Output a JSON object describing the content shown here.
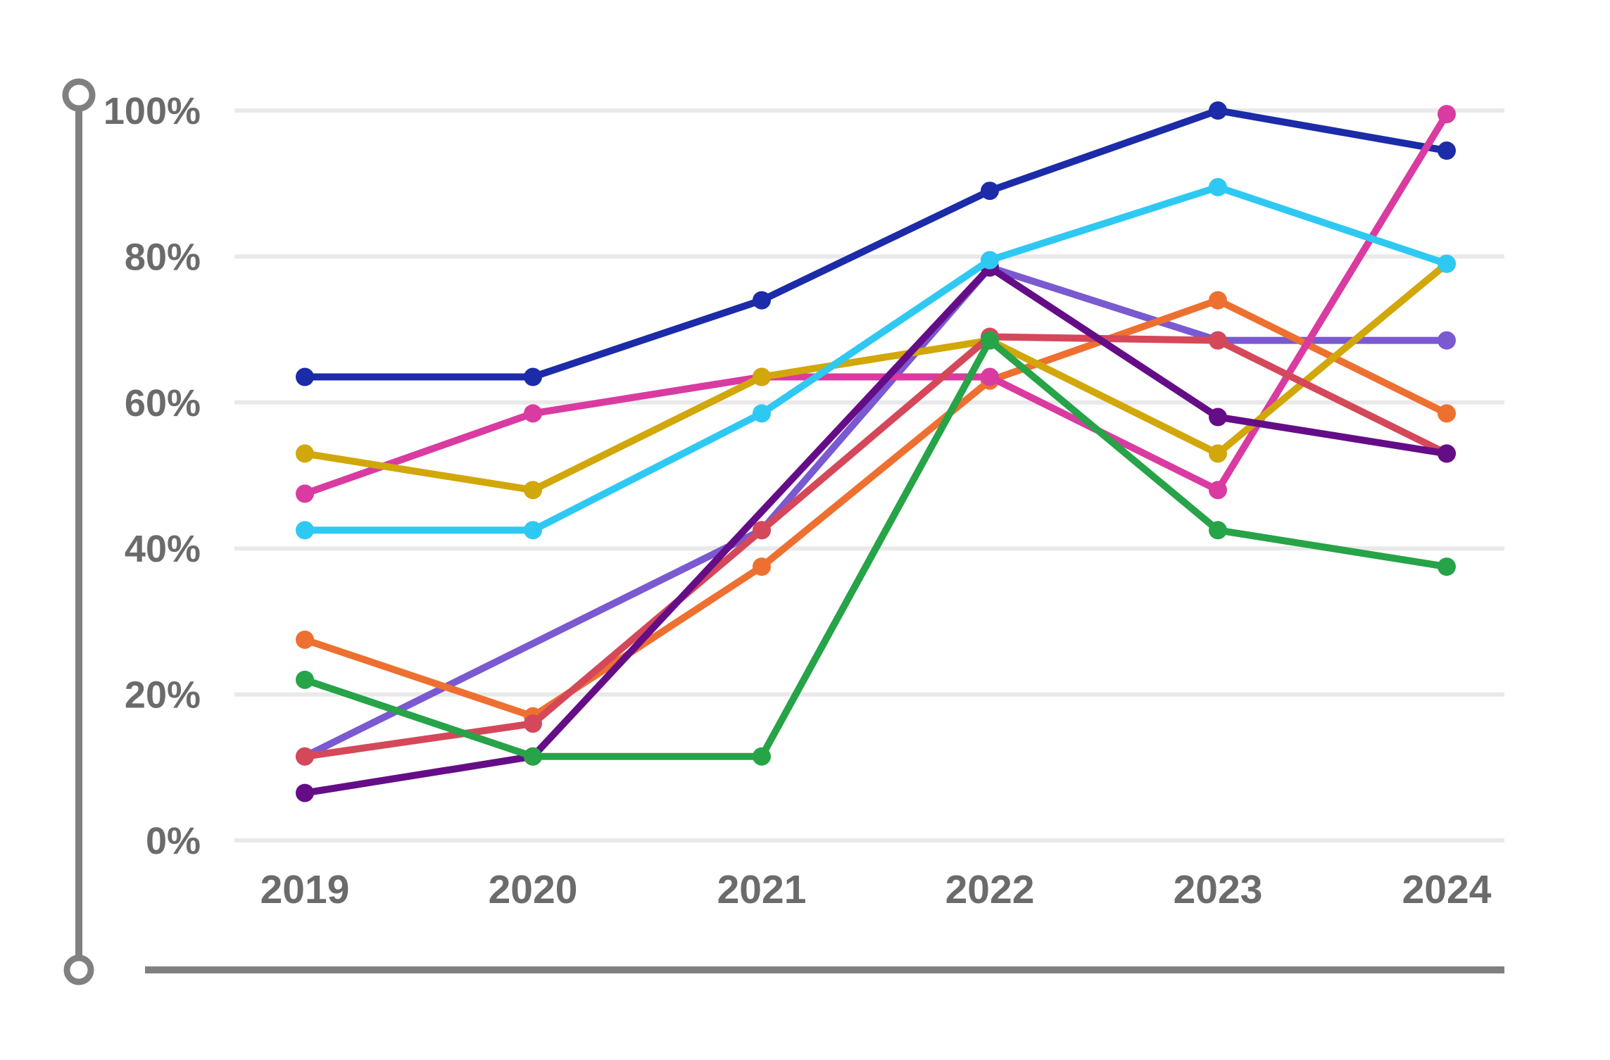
{
  "chart_data": {
    "type": "line",
    "title": "",
    "x_categories": [
      "2019",
      "2020",
      "2021",
      "2022",
      "2023",
      "2024"
    ],
    "y_ticks": [
      {
        "label": "100%",
        "value": 100
      },
      {
        "label": "80%",
        "value": 80
      },
      {
        "label": "60%",
        "value": 60
      },
      {
        "label": "40%",
        "value": 40
      },
      {
        "label": "20%",
        "value": 20
      },
      {
        "label": "0%",
        "value": 0
      }
    ],
    "ylim": [
      0,
      100
    ],
    "grid": true,
    "legend": "none",
    "series": [
      {
        "name": "navy",
        "color": "#1c2ba8",
        "values": [
          63.5,
          63.5,
          74,
          89,
          100,
          94.5
        ]
      },
      {
        "name": "violet",
        "color": "#7a59d1",
        "values": [
          11.5,
          null,
          42.5,
          78.5,
          68.5,
          68.5
        ]
      },
      {
        "name": "orange",
        "color": "#ee7030",
        "values": [
          27.5,
          17,
          37.5,
          63,
          74,
          58.5
        ]
      },
      {
        "name": "pink",
        "color": "#d93ba1",
        "values": [
          47.5,
          58.5,
          63.5,
          63.5,
          48,
          99.5
        ]
      },
      {
        "name": "gold",
        "color": "#d1a70a",
        "values": [
          53,
          48,
          63.5,
          68.5,
          53,
          79
        ]
      },
      {
        "name": "red",
        "color": "#d4485a",
        "values": [
          11.5,
          16,
          42.5,
          69,
          68.5,
          53
        ]
      },
      {
        "name": "dark-purple",
        "color": "#650d87",
        "values": [
          6.5,
          11.5,
          null,
          78.5,
          58,
          53
        ]
      },
      {
        "name": "green",
        "color": "#27a348",
        "values": [
          22,
          11.5,
          11.5,
          68.5,
          42.5,
          37.5
        ]
      },
      {
        "name": "cyan",
        "color": "#2ec9f2",
        "values": [
          42.5,
          42.5,
          58.5,
          79.5,
          89.5,
          79
        ]
      }
    ]
  },
  "style_colors": {
    "background": "#ffffff",
    "gridline": "#e9e9e9",
    "tick_label": "#6b6b6b",
    "rail": "#808080"
  }
}
